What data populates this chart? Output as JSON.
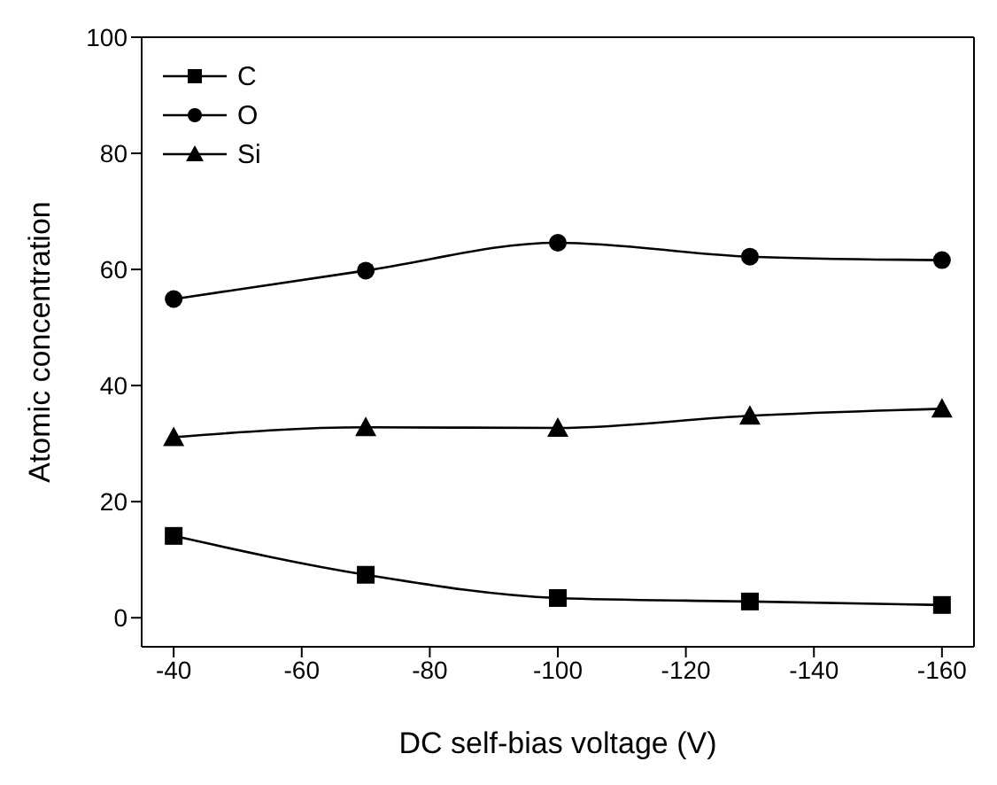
{
  "chart_data": {
    "type": "line",
    "xlabel": "DC self-bias voltage (V)",
    "ylabel": "Atomic concentration",
    "x": [
      -40,
      -70,
      -100,
      -130,
      -160
    ],
    "series": [
      {
        "name": "C",
        "color": "#000000",
        "marker": "square",
        "values": [
          14.1,
          7.4,
          3.4,
          2.8,
          2.2
        ]
      },
      {
        "name": "O",
        "color": "#000000",
        "marker": "circle",
        "values": [
          54.9,
          59.8,
          64.6,
          62.2,
          61.6
        ]
      },
      {
        "name": "Si",
        "color": "#000000",
        "marker": "triangle",
        "values": [
          31.1,
          32.8,
          32.7,
          34.8,
          36.0
        ]
      }
    ],
    "xlim": [
      -35,
      -165
    ],
    "xticks": [
      -40,
      -60,
      -80,
      -100,
      -120,
      -140,
      -160
    ],
    "ylim": [
      -5,
      100
    ],
    "yticks": [
      0,
      20,
      40,
      60,
      80,
      100
    ],
    "grid": false,
    "legend": "top left",
    "line_style": "solid"
  }
}
